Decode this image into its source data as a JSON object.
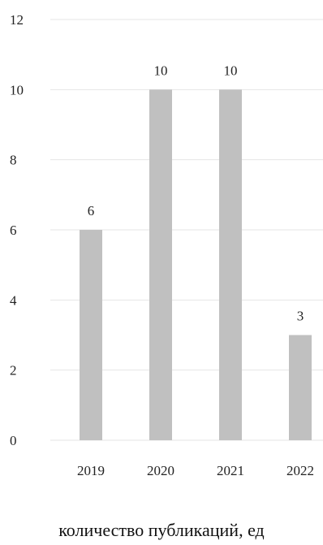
{
  "chart_data": {
    "type": "bar",
    "categories": [
      "2019",
      "2020",
      "2021",
      "2022"
    ],
    "values": [
      6,
      10,
      10,
      3
    ],
    "data_labels": [
      "6",
      "10",
      "10",
      "3"
    ],
    "y_ticks": [
      "0",
      "2",
      "4",
      "6",
      "8",
      "10",
      "12"
    ],
    "ylim": [
      0,
      12
    ],
    "grid": true,
    "xlabel": "количество публикаций, ед",
    "colors": {
      "bar": "#c0c0c0",
      "grid": "#e6e6e6"
    }
  }
}
